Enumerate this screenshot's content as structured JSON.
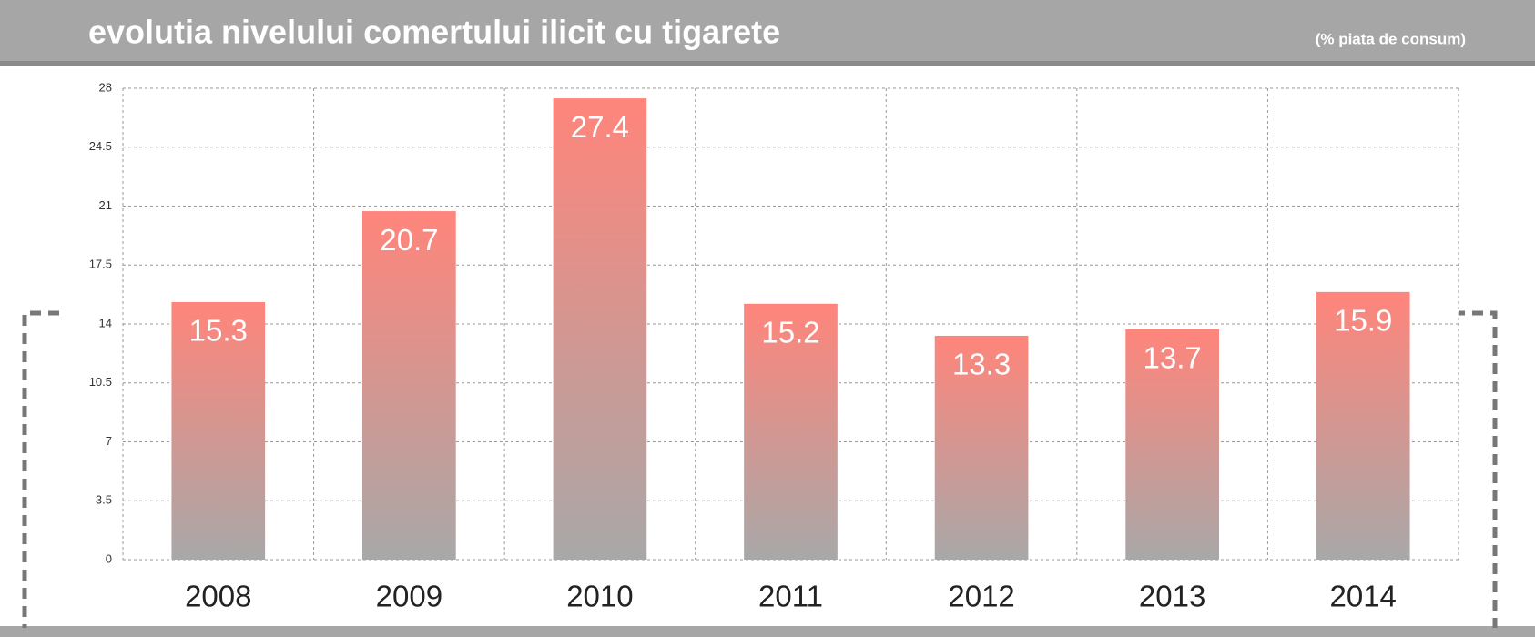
{
  "chart_data": {
    "type": "bar",
    "title": "evolutia nivelului comertului ilicit cu tigarete",
    "subtitle": "(% piata de consum)",
    "categories": [
      "2008",
      "2009",
      "2010",
      "2011",
      "2012",
      "2013",
      "2014"
    ],
    "values": [
      15.3,
      20.7,
      27.4,
      15.2,
      13.3,
      13.7,
      15.9
    ],
    "color": "#ff857b",
    "ylim": [
      0,
      28
    ],
    "yticks": [
      0,
      3.5,
      7,
      10.5,
      14,
      17.5,
      21,
      24.5,
      28
    ],
    "grid": true
  }
}
